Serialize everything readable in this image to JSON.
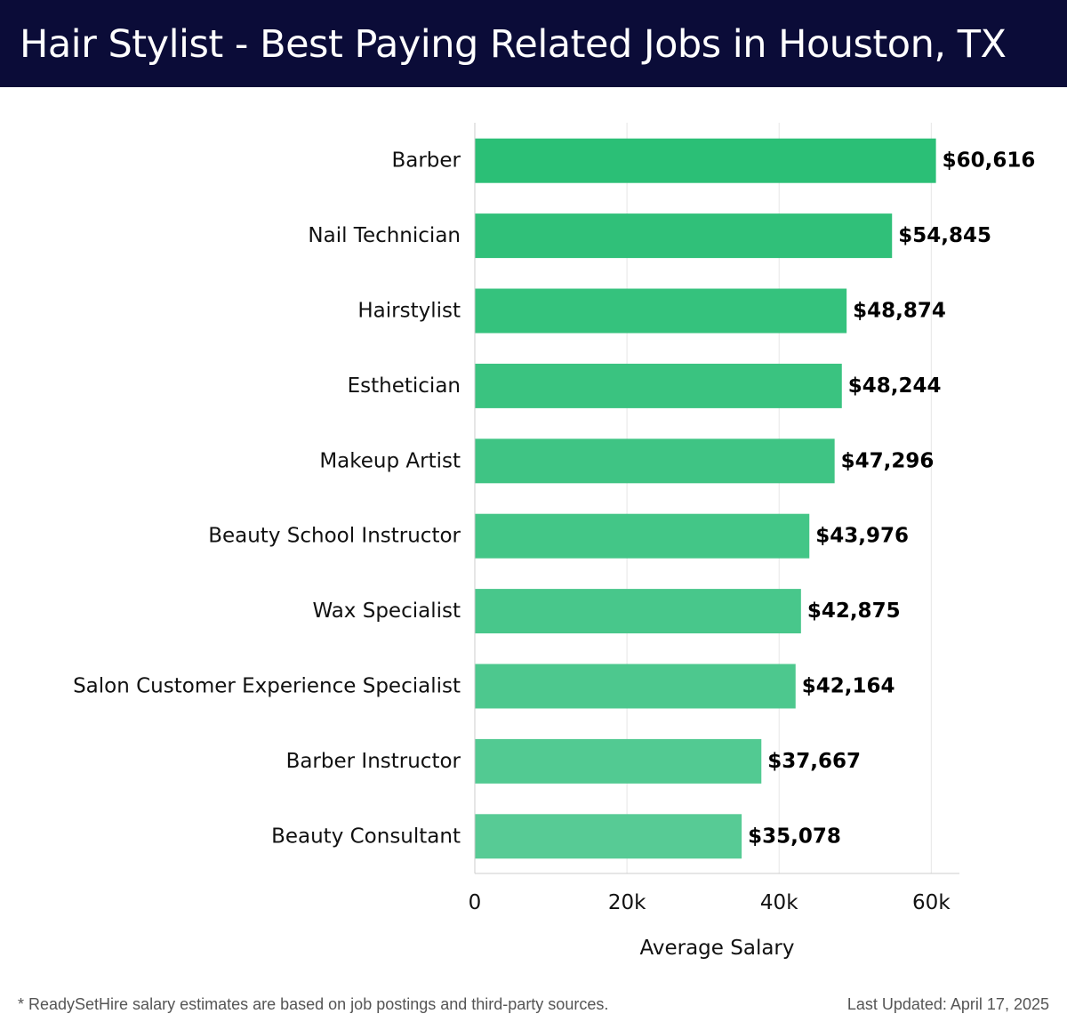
{
  "chart_data": {
    "type": "bar",
    "orientation": "horizontal",
    "title": "Hair Stylist - Best Paying Related Jobs in Houston, TX",
    "xlabel": "Average Salary",
    "ylabel": "",
    "xlim": [
      0,
      63700
    ],
    "x_ticks": [
      0,
      20000,
      40000,
      60000
    ],
    "x_tick_labels": [
      "0",
      "20k",
      "40k",
      "60k"
    ],
    "grid": "vertical",
    "legend": "none",
    "categories": [
      "Barber",
      "Nail Technician",
      "Hairstylist",
      "Esthetician",
      "Makeup Artist",
      "Beauty School Instructor",
      "Wax Specialist",
      "Salon Customer Experience Specialist",
      "Barber Instructor",
      "Beauty Consultant"
    ],
    "values": [
      60616,
      54845,
      48874,
      48244,
      47296,
      43976,
      42875,
      42164,
      37667,
      35078
    ],
    "value_labels": [
      "$60,616",
      "$54,845",
      "$48,874",
      "$48,244",
      "$47,296",
      "$43,976",
      "$42,875",
      "$42,164",
      "$37,667",
      "$35,078"
    ],
    "colors": {
      "bar_start": "#2bbf76",
      "bar_end": "#57cb95"
    }
  },
  "header": {
    "background": "#0b0c38"
  },
  "footer": {
    "note": "* ReadySetHire salary estimates are based on job postings and third-party sources.",
    "updated": "Last Updated: April 17, 2025"
  }
}
